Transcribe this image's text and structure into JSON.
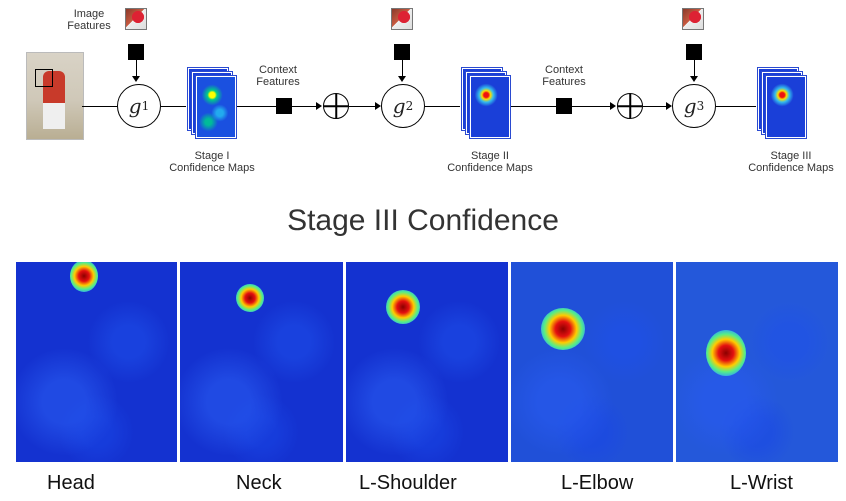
{
  "pipeline": {
    "image_features_label": "Image\nFeatures",
    "context_features_label": "Context\nFeatures",
    "nodes": [
      {
        "symbol": "g",
        "sub": "1"
      },
      {
        "symbol": "g",
        "sub": "2"
      },
      {
        "symbol": "g",
        "sub": "3"
      }
    ],
    "stage_labels": [
      "Stage I\nConfidence Maps",
      "Stage II\nConfidence Maps",
      "Stage III\nConfidence Maps"
    ]
  },
  "section_title": "Stage III Confidence",
  "heatmaps": [
    {
      "label": "Head"
    },
    {
      "label": "Neck"
    },
    {
      "label": "L-Shoulder"
    },
    {
      "label": "L-Elbow"
    },
    {
      "label": "L-Wrist"
    }
  ],
  "colors": {
    "heatmap_bg": "#1432d0",
    "peak": "#e41010"
  }
}
